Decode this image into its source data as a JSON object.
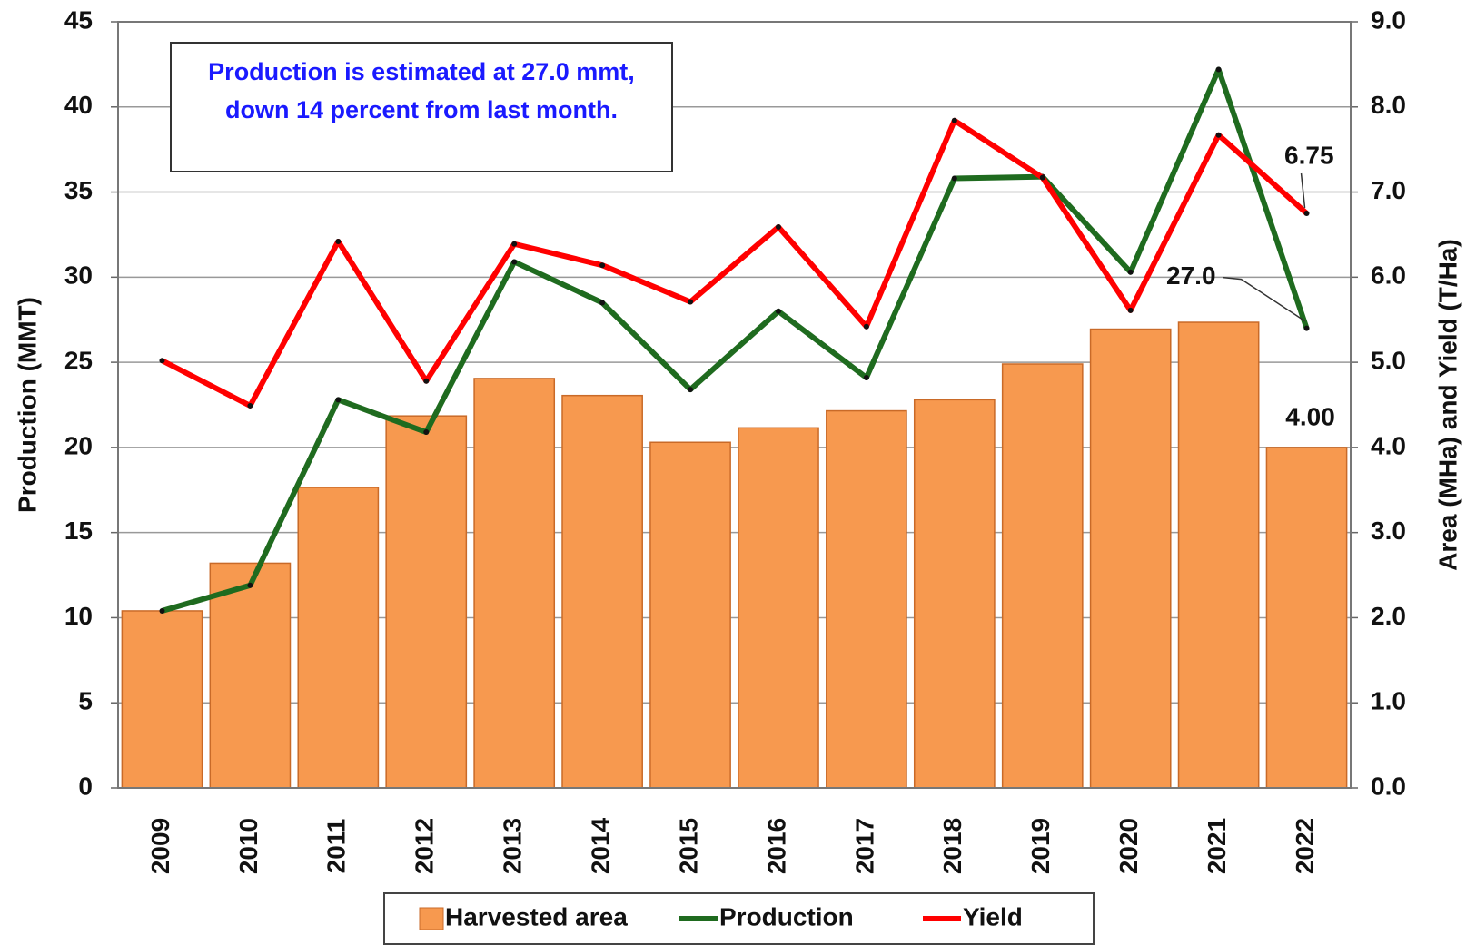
{
  "chart_data": {
    "type": "bar",
    "annotation": "Production is estimated at 27.0 mmt, down 14 percent from last month.",
    "ylabel": "Production (MMT)",
    "y2label": "Area (MHa) and Yield (T/Ha)",
    "categories": [
      "2009",
      "2010",
      "2011",
      "2012",
      "2013",
      "2014",
      "2015",
      "2016",
      "2017",
      "2018",
      "2019",
      "2020",
      "2021",
      "2022"
    ],
    "ylim": [
      0,
      45
    ],
    "yticks": [
      0,
      5,
      10,
      15,
      20,
      25,
      30,
      35,
      40,
      45
    ],
    "y2lim": [
      0,
      9
    ],
    "y2ticks": [
      {
        "value": 0,
        "label": "0.0"
      },
      {
        "value": 1,
        "label": "1.0"
      },
      {
        "value": 2,
        "label": "2.0"
      },
      {
        "value": 3,
        "label": "3.0"
      },
      {
        "value": 4,
        "label": "4.0"
      },
      {
        "value": 5,
        "label": "5.0"
      },
      {
        "value": 6,
        "label": "6.0"
      },
      {
        "value": 7,
        "label": "7.0"
      },
      {
        "value": 8,
        "label": "8.0"
      },
      {
        "value": 9,
        "label": "9.0"
      }
    ],
    "grid": true,
    "legend": "bottom",
    "series": [
      {
        "name": "Harvested area",
        "type": "bar",
        "axis": "y2",
        "color": "#f7994f",
        "values": [
          2.08,
          2.64,
          3.53,
          4.37,
          4.81,
          4.61,
          4.06,
          4.23,
          4.43,
          4.56,
          4.98,
          5.39,
          5.47,
          4.0
        ],
        "value_labels": [
          null,
          null,
          null,
          null,
          null,
          null,
          null,
          null,
          null,
          null,
          null,
          null,
          null,
          "4.00"
        ]
      },
      {
        "name": "Production",
        "type": "line",
        "axis": "y",
        "color": "#1f6b1f",
        "values": [
          10.4,
          11.9,
          22.8,
          20.9,
          30.9,
          28.5,
          23.4,
          28.0,
          24.1,
          35.8,
          35.9,
          30.3,
          42.2,
          27.0
        ],
        "value_labels": [
          null,
          null,
          null,
          null,
          null,
          null,
          null,
          null,
          null,
          null,
          null,
          null,
          null,
          "27.0"
        ]
      },
      {
        "name": "Yield",
        "type": "line",
        "axis": "y2",
        "color": "#ff0000",
        "values": [
          5.02,
          4.49,
          6.42,
          4.78,
          6.39,
          6.14,
          5.71,
          6.59,
          5.42,
          7.84,
          7.17,
          5.61,
          7.67,
          6.75
        ],
        "value_labels": [
          null,
          null,
          null,
          null,
          null,
          null,
          null,
          null,
          null,
          null,
          null,
          null,
          null,
          "6.75"
        ]
      }
    ]
  }
}
